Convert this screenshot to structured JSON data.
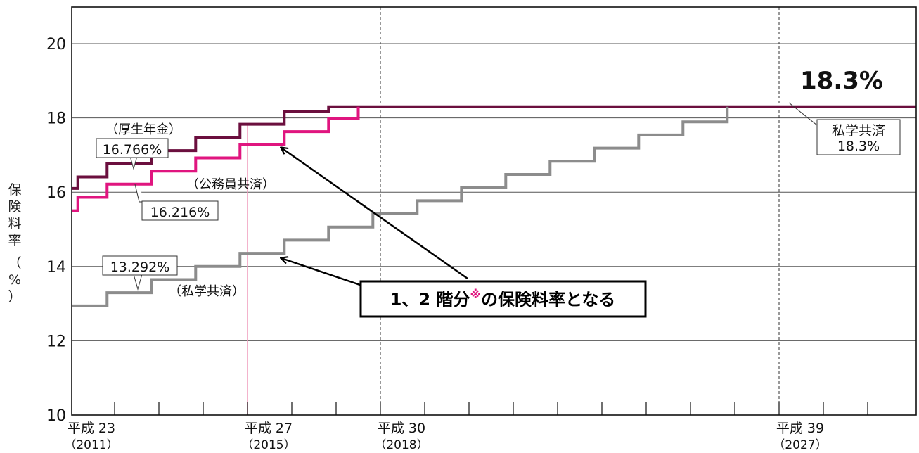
{
  "chart_data": {
    "type": "line",
    "ylabel_chars": [
      "保",
      "険",
      "料",
      "率",
      "（",
      "%",
      "）"
    ],
    "ylim": [
      10,
      21
    ],
    "yticks": [
      10,
      12,
      14,
      16,
      18,
      20
    ],
    "xlim": [
      2011,
      2030
    ],
    "xticks": [
      {
        "x": 2011,
        "line1": "平成 23",
        "line2": "（2011）"
      },
      {
        "x": 2015,
        "line1": "平成 27",
        "line2": "（2015）"
      },
      {
        "x": 2018,
        "line1": "平成 30",
        "line2": "（2018）"
      },
      {
        "x": 2027,
        "line1": "平成 39",
        "line2": "（2027）"
      }
    ],
    "guides": [
      2015,
      2018,
      2027
    ],
    "colors": {
      "kosei": "#6b0f3e",
      "komuin": "#e0157f",
      "shigaku": "#8c8c8c",
      "guide2015": "#f0a0c0"
    },
    "series": [
      {
        "key": "kosei",
        "name": "（厚生年金）",
        "steps": [
          [
            2010.8,
            16.1
          ],
          [
            2011.17,
            16.412
          ],
          [
            2011.83,
            16.766
          ],
          [
            2012.83,
            17.12
          ],
          [
            2013.83,
            17.474
          ],
          [
            2014.83,
            17.828
          ],
          [
            2015.83,
            18.182
          ],
          [
            2016.83,
            18.3
          ],
          [
            2029.9,
            18.3
          ]
        ]
      },
      {
        "key": "komuin",
        "name": "（公務員共済）",
        "steps": [
          [
            2010.8,
            15.5
          ],
          [
            2011.17,
            15.862
          ],
          [
            2011.83,
            16.216
          ],
          [
            2012.83,
            16.568
          ],
          [
            2013.83,
            16.922
          ],
          [
            2014.83,
            17.276
          ],
          [
            2015.83,
            17.63
          ],
          [
            2016.83,
            17.984
          ],
          [
            2017.83,
            18.3
          ]
        ]
      },
      {
        "key": "shigaku",
        "name": "（私学共済）",
        "steps": [
          [
            2010.8,
            12.938
          ],
          [
            2011.83,
            13.292
          ],
          [
            2012.83,
            13.646
          ],
          [
            2013.83,
            14.0
          ],
          [
            2014.83,
            14.354
          ],
          [
            2015.83,
            14.708
          ],
          [
            2016.83,
            15.062
          ],
          [
            2017.83,
            15.416
          ],
          [
            2018.83,
            15.77
          ],
          [
            2019.83,
            16.124
          ],
          [
            2020.83,
            16.478
          ],
          [
            2021.83,
            16.832
          ],
          [
            2022.83,
            17.186
          ],
          [
            2023.83,
            17.54
          ],
          [
            2024.83,
            17.894
          ],
          [
            2025.83,
            18.3
          ]
        ]
      }
    ],
    "annotations": {
      "kosei_start": "16.766%",
      "kosei_label": "（厚生年金）",
      "komuin_start": "16.216%",
      "komuin_label": "（公務員共済）",
      "shigaku_start": "13.292%",
      "shigaku_label": "（私学共済）",
      "shigaku_end_line1": "私学共済",
      "shigaku_end_line2": "18.3%",
      "final": "18.3%",
      "callout_text": "1、2 階分",
      "callout_mark": "※",
      "callout_rest": "の保険料率となる"
    }
  }
}
